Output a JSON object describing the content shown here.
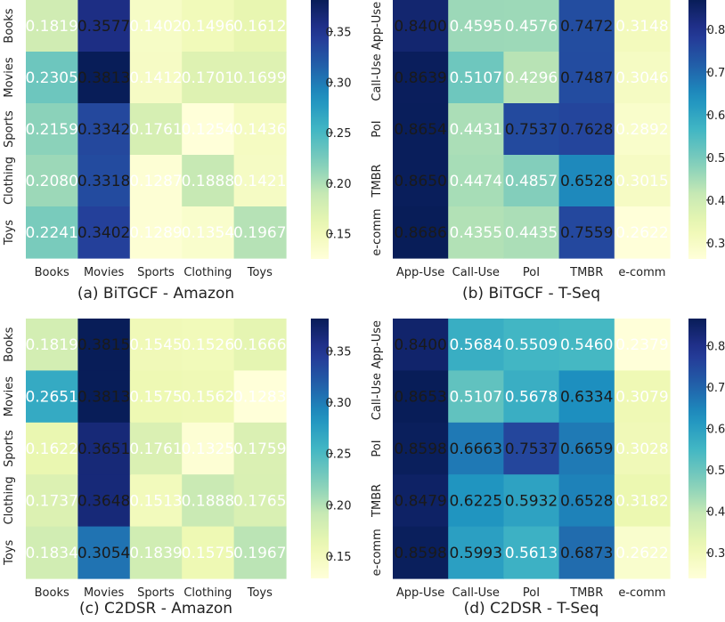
{
  "colors": {
    "colormap": [
      "#ffffd9",
      "#edf8b1",
      "#c7e9b4",
      "#7fcdbb",
      "#41b6c4",
      "#1d91c0",
      "#225ea8",
      "#253494",
      "#081d58"
    ],
    "dark_text": "#1a1a1a",
    "light_text": "#ffffff"
  },
  "chart_data": [
    {
      "type": "heatmap",
      "title": "(a) BiTGCF - Amazon",
      "row_labels": [
        "Books",
        "Movies",
        "Sports",
        "Clothing",
        "Toys"
      ],
      "col_labels": [
        "Books",
        "Movies",
        "Sports",
        "Clothing",
        "Toys"
      ],
      "values": [
        [
          0.1819,
          0.3577,
          0.1402,
          0.1496,
          0.1612
        ],
        [
          0.2305,
          0.3813,
          0.1412,
          0.1701,
          0.1699
        ],
        [
          0.2159,
          0.3342,
          0.1761,
          0.1254,
          0.1436
        ],
        [
          0.208,
          0.3318,
          0.1287,
          0.1888,
          0.1421
        ],
        [
          0.2241,
          0.3402,
          0.1289,
          0.1354,
          0.1967
        ]
      ],
      "vmin": 0.125,
      "vmax": 0.3813,
      "colorbar_ticks": [
        0.15,
        0.2,
        0.25,
        0.3,
        0.35
      ],
      "colorbar_tick_labels": [
        "0.15",
        "0.20",
        "0.25",
        "0.30",
        "0.35"
      ]
    },
    {
      "type": "heatmap",
      "title": "(b) BiTGCF - T-Seq",
      "row_labels": [
        "App-Use",
        "Call-Use",
        "PoI",
        "TMBR",
        "e-comm"
      ],
      "col_labels": [
        "App-Use",
        "Call-Use",
        "PoI",
        "TMBR",
        "e-comm"
      ],
      "values": [
        [
          0.84,
          0.4595,
          0.4576,
          0.7472,
          0.3148
        ],
        [
          0.8639,
          0.5107,
          0.4296,
          0.7487,
          0.3046
        ],
        [
          0.8654,
          0.4431,
          0.7537,
          0.7628,
          0.2892
        ],
        [
          0.865,
          0.4474,
          0.4857,
          0.6528,
          0.3015
        ],
        [
          0.8686,
          0.4355,
          0.4435,
          0.7559,
          0.2622
        ]
      ],
      "vmin": 0.2622,
      "vmax": 0.8686,
      "colorbar_ticks": [
        0.3,
        0.4,
        0.5,
        0.6,
        0.7,
        0.8
      ],
      "colorbar_tick_labels": [
        "0.3",
        "0.4",
        "0.5",
        "0.6",
        "0.7",
        "0.8"
      ]
    },
    {
      "type": "heatmap",
      "title": "(c) C2DSR - Amazon",
      "row_labels": [
        "Books",
        "Movies",
        "Sports",
        "Clothing",
        "Toys"
      ],
      "col_labels": [
        "Books",
        "Movies",
        "Sports",
        "Clothing",
        "Toys"
      ],
      "values": [
        [
          0.1819,
          0.3815,
          0.1545,
          0.1526,
          0.1666
        ],
        [
          0.2651,
          0.3813,
          0.1575,
          0.1562,
          0.1283
        ],
        [
          0.1622,
          0.3651,
          0.1761,
          0.1325,
          0.1759
        ],
        [
          0.1737,
          0.3648,
          0.1513,
          0.1888,
          0.1765
        ],
        [
          0.1834,
          0.3054,
          0.1839,
          0.1575,
          0.1967
        ]
      ],
      "vmin": 0.1283,
      "vmax": 0.3815,
      "colorbar_ticks": [
        0.15,
        0.2,
        0.25,
        0.3,
        0.35
      ],
      "colorbar_tick_labels": [
        "0.15",
        "0.20",
        "0.25",
        "0.30",
        "0.35"
      ]
    },
    {
      "type": "heatmap",
      "title": "(d) C2DSR - T-Seq",
      "row_labels": [
        "App-Use",
        "Call-Use",
        "PoI",
        "TMBR",
        "e-comm"
      ],
      "col_labels": [
        "App-Use",
        "Call-Use",
        "PoI",
        "TMBR",
        "e-comm"
      ],
      "values": [
        [
          0.84,
          0.5684,
          0.5509,
          0.546,
          0.2379
        ],
        [
          0.8653,
          0.5107,
          0.5678,
          0.6334,
          0.3079
        ],
        [
          0.8598,
          0.6663,
          0.7537,
          0.6659,
          0.3028
        ],
        [
          0.8479,
          0.6225,
          0.5932,
          0.6528,
          0.3182
        ],
        [
          0.8598,
          0.5993,
          0.5613,
          0.6873,
          0.2622
        ]
      ],
      "vmin": 0.2379,
      "vmax": 0.8653,
      "colorbar_ticks": [
        0.3,
        0.4,
        0.5,
        0.6,
        0.7,
        0.8
      ],
      "colorbar_tick_labels": [
        "0.3",
        "0.4",
        "0.5",
        "0.6",
        "0.7",
        "0.8"
      ]
    }
  ]
}
